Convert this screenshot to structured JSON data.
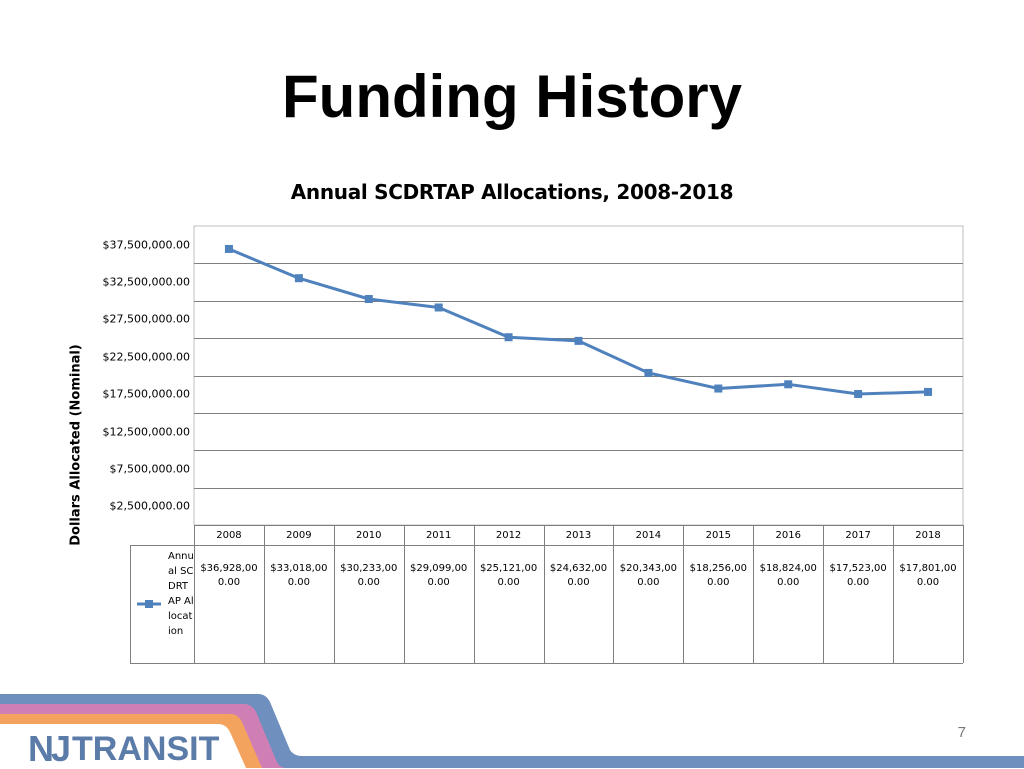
{
  "slide": {
    "title": "Funding History",
    "page_number": "7"
  },
  "brand": {
    "logo_mark": "NJ",
    "logo_text": "TRANSIT",
    "colors": {
      "stripe_blue": "#6f8fbf",
      "stripe_pink": "#d07fb5",
      "stripe_orange": "#f4a35f",
      "logo": "#5b7ba8"
    }
  },
  "chart_data": {
    "type": "line",
    "title": "Annual SCDRTAP Allocations, 2008-2018",
    "xlabel": "",
    "ylabel": "Dollars Allocated (Nominal)",
    "ylim": [
      0,
      40000000
    ],
    "y_tick_labels": [
      "$37,500,000.00",
      "$32,500,000.00",
      "$27,500,000.00",
      "$22,500,000.00",
      "$17,500,000.00",
      "$12,500,000.00",
      "$7,500,000.00",
      "$2,500,000.00"
    ],
    "y_tick_values": [
      37500000,
      32500000,
      27500000,
      22500000,
      17500000,
      12500000,
      7500000,
      2500000
    ],
    "categories": [
      "2008",
      "2009",
      "2010",
      "2011",
      "2012",
      "2013",
      "2014",
      "2015",
      "2016",
      "2017",
      "2018"
    ],
    "series": [
      {
        "name": "Annual SCDRTAP Allocation",
        "color": "#4f81bd",
        "marker": "square",
        "values": [
          36928000,
          33018000,
          30233000,
          29099000,
          25121000,
          24632000,
          20343000,
          18256000,
          18824000,
          17523000,
          17801000
        ],
        "value_labels": [
          "$36,928,000.00",
          "$33,018,000.00",
          "$30,233,000.00",
          "$29,099,000.00",
          "$25,121,000.00",
          "$24,632,000.00",
          "$20,343,000.00",
          "$18,256,000.00",
          "$18,824,000.00",
          "$17,523,000.00",
          "$17,801,000.00"
        ]
      }
    ],
    "grid": true,
    "legend": "data-table",
    "data_table": true
  }
}
